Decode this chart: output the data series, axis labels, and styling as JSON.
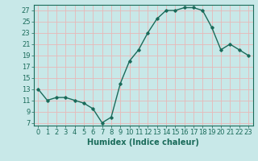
{
  "x": [
    0,
    1,
    2,
    3,
    4,
    5,
    6,
    7,
    8,
    9,
    10,
    11,
    12,
    13,
    14,
    15,
    16,
    17,
    18,
    19,
    20,
    21,
    22,
    23
  ],
  "y": [
    13,
    11,
    11.5,
    11.5,
    11,
    10.5,
    9.5,
    7,
    8,
    14,
    18,
    20,
    23,
    25.5,
    27,
    27,
    27.5,
    27.5,
    27,
    24,
    20,
    21,
    20,
    19
  ],
  "line_color": "#1a6b5a",
  "marker": "D",
  "marker_size": 1.8,
  "bg_color": "#c8e8e8",
  "grid_color": "#e8b8b8",
  "xlabel": "Humidex (Indice chaleur)",
  "xlim": [
    -0.5,
    23.5
  ],
  "ylim": [
    6.5,
    28
  ],
  "yticks": [
    7,
    9,
    11,
    13,
    15,
    17,
    19,
    21,
    23,
    25,
    27
  ],
  "xticks": [
    0,
    1,
    2,
    3,
    4,
    5,
    6,
    7,
    8,
    9,
    10,
    11,
    12,
    13,
    14,
    15,
    16,
    17,
    18,
    19,
    20,
    21,
    22,
    23
  ],
  "xlabel_fontsize": 7,
  "tick_fontsize": 6,
  "line_width": 1.0
}
